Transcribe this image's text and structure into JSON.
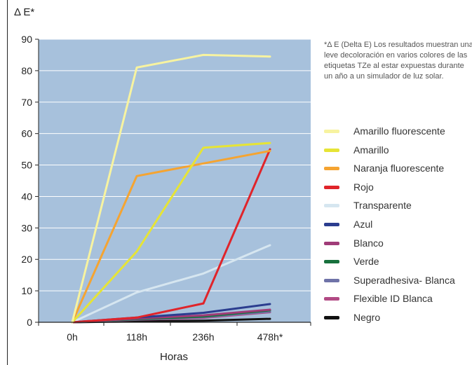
{
  "chart_data": {
    "type": "line",
    "ylabel": "Δ E*",
    "xlabel": "Horas",
    "categories": [
      "0h",
      "118h",
      "236h",
      "478h*"
    ],
    "ylim": [
      0,
      90
    ],
    "yticks": [
      0,
      10,
      20,
      30,
      40,
      50,
      60,
      70,
      80,
      90
    ],
    "grid": true,
    "background": "#a7c1dc",
    "legend_position": "right",
    "note": "*Δ E (Delta E) Los resultados muestran una leve decoloración en varios colores de las etiquetas TZe al estar expuestas durante un año a un simulador de luz solar.",
    "series": [
      {
        "name": "Amarillo fluorescente",
        "color": "#f7f3a0",
        "values": [
          0,
          81,
          85,
          84.5
        ]
      },
      {
        "name": "Amarillo",
        "color": "#e6e436",
        "values": [
          0,
          22.5,
          55.5,
          57
        ]
      },
      {
        "name": "Naranja fluorescente",
        "color": "#f5a431",
        "values": [
          0,
          46.5,
          50.5,
          54.5
        ]
      },
      {
        "name": "Rojo",
        "color": "#e0242a",
        "values": [
          0,
          1.5,
          6,
          55
        ]
      },
      {
        "name": "Transparente",
        "color": "#d6e6f0",
        "values": [
          0,
          9.5,
          15.5,
          24.5
        ]
      },
      {
        "name": "Azul",
        "color": "#2b3d8f",
        "values": [
          0,
          1.5,
          3,
          5.8
        ]
      },
      {
        "name": "Blanco",
        "color": "#a03c78",
        "values": [
          0,
          1.2,
          2.2,
          4
        ]
      },
      {
        "name": "Verde",
        "color": "#17703c",
        "values": [
          0,
          1,
          1.8,
          3.8
        ]
      },
      {
        "name": "Superadhesiva- Blanca",
        "color": "#6f73a8",
        "values": [
          0,
          0.9,
          1.6,
          3.4
        ]
      },
      {
        "name": "Flexible ID Blanca",
        "color": "#b24a84",
        "values": [
          0,
          0.8,
          1.4,
          3.2
        ]
      },
      {
        "name": "Negro",
        "color": "#111111",
        "values": [
          0,
          0.3,
          0.5,
          1.1
        ]
      }
    ]
  }
}
